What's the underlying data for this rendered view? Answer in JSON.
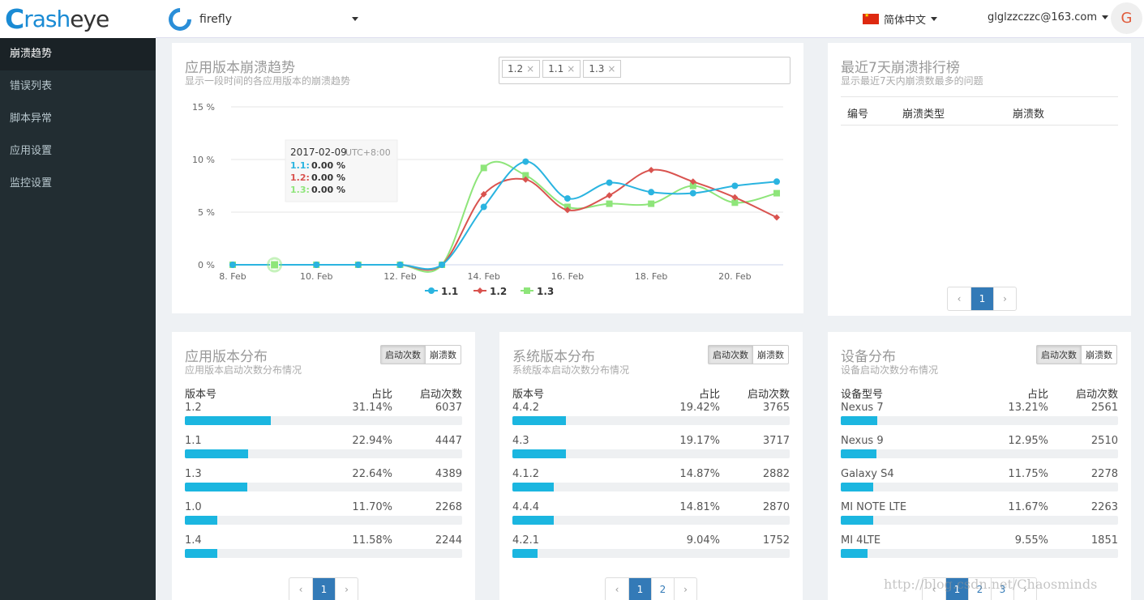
{
  "brand": {
    "logo_mark": "C",
    "logo_text_a": "rash",
    "logo_text_b": "eye"
  },
  "sidebar": {
    "items": [
      {
        "label": "崩溃趋势",
        "active": true
      },
      {
        "label": "错误列表"
      },
      {
        "label": "脚本异常"
      },
      {
        "label": "应用设置"
      },
      {
        "label": "监控设置"
      }
    ]
  },
  "topbar": {
    "app_name": "firefly",
    "language": "简体中文",
    "user_email": "glglzzczzc@163.com",
    "avatar_letter": "G"
  },
  "trend": {
    "title": "应用版本崩溃趋势",
    "subtitle": "显示一段时间的各应用版本的崩溃趋势",
    "tags": [
      {
        "label": "1.2",
        "x": "×"
      },
      {
        "label": "1.1",
        "x": "×"
      },
      {
        "label": "1.3",
        "x": "×"
      }
    ],
    "tooltip": {
      "date": "2017-02-09",
      "tz": "UTC+8:00",
      "rows": [
        {
          "k": "1.1:",
          "v": "0.00 %"
        },
        {
          "k": "1.2:",
          "v": "0.00 %"
        },
        {
          "k": "1.3:",
          "v": "0.00 %"
        }
      ]
    }
  },
  "chart_data": {
    "type": "line",
    "x": [
      "8. Feb",
      "9. Feb",
      "10. Feb",
      "11. Feb",
      "12. Feb",
      "13. Feb",
      "14. Feb",
      "15. Feb",
      "16. Feb",
      "17. Feb",
      "18. Feb",
      "19. Feb",
      "20. Feb",
      "21. Feb"
    ],
    "xticks": [
      "8. Feb",
      "10. Feb",
      "12. Feb",
      "14. Feb",
      "16. Feb",
      "18. Feb",
      "20. Feb"
    ],
    "yticks": [
      "0 %",
      "5 %",
      "10 %",
      "15 %"
    ],
    "ylim": [
      0,
      15
    ],
    "legend_position": "bottom",
    "series": [
      {
        "name": "1.1",
        "color": "#2ab4e0",
        "marker": "circle",
        "values": [
          0,
          0,
          0,
          0,
          0,
          0,
          5.5,
          9.8,
          6.3,
          7.8,
          6.9,
          6.8,
          7.5,
          7.9
        ]
      },
      {
        "name": "1.2",
        "color": "#d9534f",
        "marker": "diamond",
        "values": [
          0,
          0,
          0,
          0,
          0,
          0,
          6.7,
          8.1,
          5.2,
          6.6,
          9.0,
          7.9,
          6.4,
          4.5
        ]
      },
      {
        "name": "1.3",
        "color": "#8ee57a",
        "marker": "square",
        "values": [
          0,
          0,
          0,
          0,
          0,
          0,
          9.2,
          8.5,
          5.5,
          5.8,
          5.8,
          7.5,
          5.9,
          6.8
        ]
      }
    ]
  },
  "rank": {
    "title": "最近7天崩溃排行榜",
    "subtitle": "显示最近7天内崩溃数最多的问题",
    "cols": [
      "编号",
      "崩溃类型",
      "崩溃数"
    ],
    "pager": [
      "‹",
      "1",
      "›"
    ]
  },
  "dist": [
    {
      "title": "应用版本分布",
      "subtitle": "应用版本启动次数分布情况",
      "toggle": [
        "启动次数",
        "崩溃数"
      ],
      "cols": [
        "版本号",
        "占比",
        "启动次数"
      ],
      "rows": [
        {
          "name": "1.2",
          "pct": "31.14%",
          "count": "6037",
          "frac": 0.3114
        },
        {
          "name": "1.1",
          "pct": "22.94%",
          "count": "4447",
          "frac": 0.2294
        },
        {
          "name": "1.3",
          "pct": "22.64%",
          "count": "4389",
          "frac": 0.2264
        },
        {
          "name": "1.0",
          "pct": "11.70%",
          "count": "2268",
          "frac": 0.117
        },
        {
          "name": "1.4",
          "pct": "11.58%",
          "count": "2244",
          "frac": 0.1158
        }
      ],
      "pager": [
        "‹",
        "1",
        "›"
      ]
    },
    {
      "title": "系统版本分布",
      "subtitle": "系统版本启动次数分布情况",
      "toggle": [
        "启动次数",
        "崩溃数"
      ],
      "cols": [
        "版本号",
        "占比",
        "启动次数"
      ],
      "rows": [
        {
          "name": "4.4.2",
          "pct": "19.42%",
          "count": "3765",
          "frac": 0.1942
        },
        {
          "name": "4.3",
          "pct": "19.17%",
          "count": "3717",
          "frac": 0.1917
        },
        {
          "name": "4.1.2",
          "pct": "14.87%",
          "count": "2882",
          "frac": 0.1487
        },
        {
          "name": "4.4.4",
          "pct": "14.81%",
          "count": "2870",
          "frac": 0.1481
        },
        {
          "name": "4.2.1",
          "pct": "9.04%",
          "count": "1752",
          "frac": 0.0904
        }
      ],
      "pager": [
        "‹",
        "1",
        "2",
        "›"
      ]
    },
    {
      "title": "设备分布",
      "subtitle": "设备启动次数分布情况",
      "toggle": [
        "启动次数",
        "崩溃数"
      ],
      "cols": [
        "设备型号",
        "占比",
        "启动次数"
      ],
      "rows": [
        {
          "name": "Nexus 7",
          "pct": "13.21%",
          "count": "2561",
          "frac": 0.1321
        },
        {
          "name": "Nexus 9",
          "pct": "12.95%",
          "count": "2510",
          "frac": 0.1295
        },
        {
          "name": "Galaxy S4",
          "pct": "11.75%",
          "count": "2278",
          "frac": 0.1175
        },
        {
          "name": "MI NOTE LTE",
          "pct": "11.67%",
          "count": "2263",
          "frac": 0.1167
        },
        {
          "name": "MI 4LTE",
          "pct": "9.55%",
          "count": "1851",
          "frac": 0.0955
        }
      ],
      "pager": [
        "‹",
        "1",
        "2",
        "3",
        "›"
      ]
    }
  ],
  "watermark": "http://blog.csdn.net/Chaosminds"
}
